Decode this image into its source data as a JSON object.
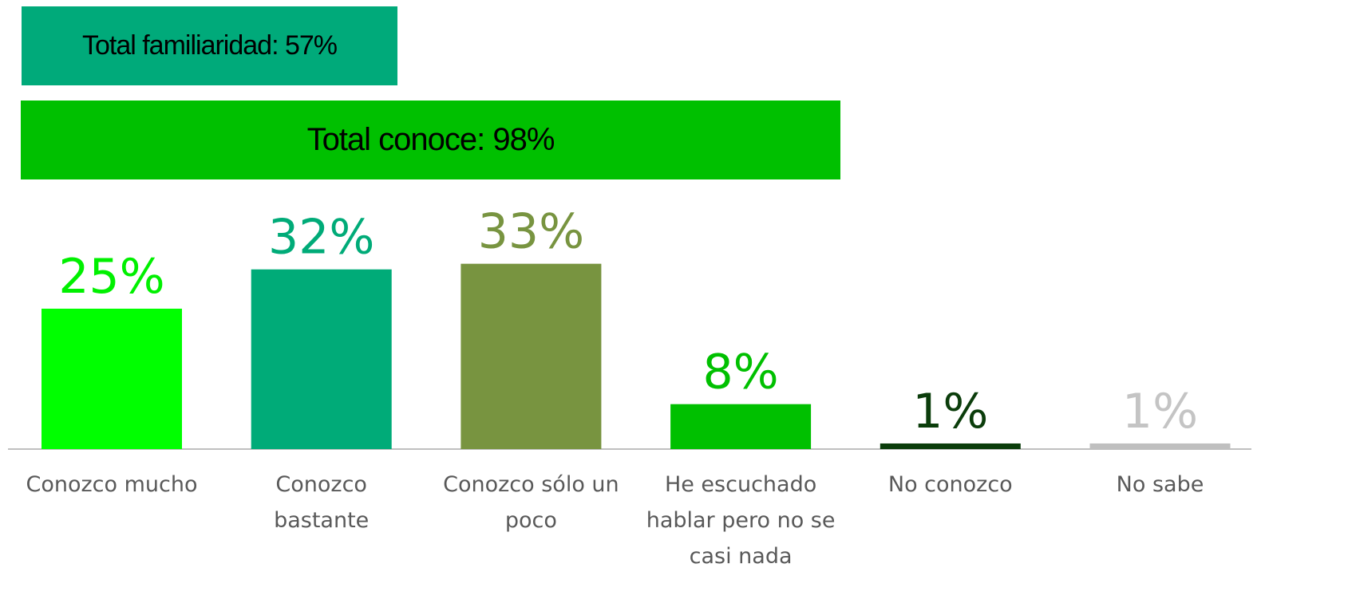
{
  "chart_data": {
    "type": "bar",
    "annotations": [
      {
        "text": "Total familiaridad: 57%",
        "color": "#00aa7a"
      },
      {
        "text": "Total conoce: 98%",
        "color": "#00c000"
      }
    ],
    "categories": [
      "Conozco mucho",
      "Conozco bastante",
      "Conozco sólo un poco",
      "He escuchado hablar pero no se casi nada",
      "No conozco",
      "No sabe"
    ],
    "values": [
      25,
      32,
      33,
      8,
      1,
      1
    ],
    "value_labels": [
      "25%",
      "32%",
      "33%",
      "8%",
      "1%",
      "1%"
    ],
    "colors": [
      "#00ff00",
      "#00ab78",
      "#789440",
      "#00c000",
      "#0b3d0b",
      "#bfbfbf"
    ],
    "label_colors": [
      "#00f000",
      "#00ab78",
      "#789440",
      "#00c000",
      "#0b3d0b",
      "#c4c4c4"
    ]
  }
}
